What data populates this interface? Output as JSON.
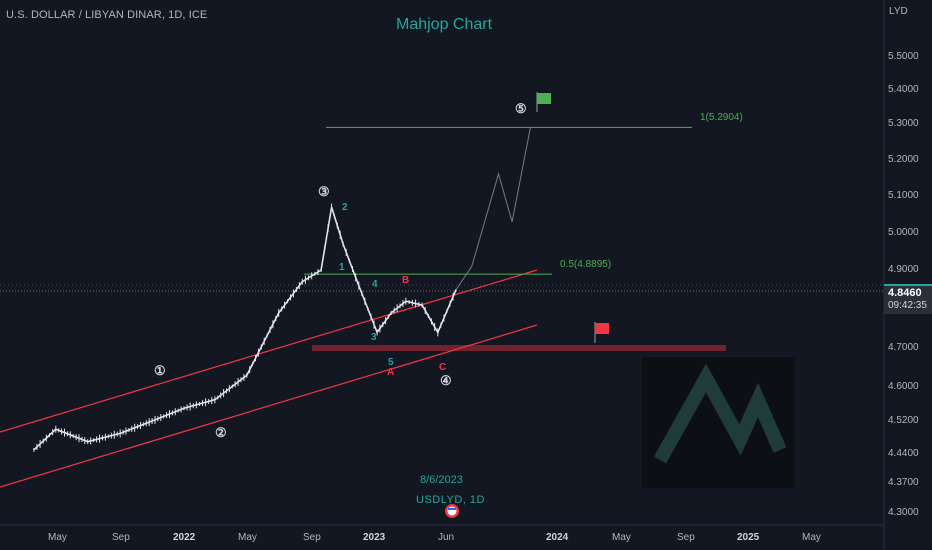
{
  "header": {
    "symbol": "U.S. DOLLAR / LIBYAN DINAR, 1D, ICE",
    "brand": "Mahjop Chart"
  },
  "watermark": {
    "date": "8/6/2023",
    "symbol": "USDLYD, 1D"
  },
  "price_tag": {
    "value": "4.8460",
    "countdown": "09:42:35"
  },
  "colors": {
    "background": "#131722",
    "channel": "#f23645",
    "fib_line": "#4caf50",
    "candle_up": "#e0e3eb",
    "support_zone": "#7b2530",
    "accent": "#26a69a"
  },
  "annotations": {
    "fib_1": "1(5.2904)",
    "fib_05": "0.5(4.8895)",
    "waves": [
      {
        "label": "①",
        "color": "#ffffff"
      },
      {
        "label": "②",
        "color": "#ffffff"
      },
      {
        "label": "③",
        "color": "#ffffff"
      },
      {
        "label": "④",
        "color": "#ffffff"
      },
      {
        "label": "⑤",
        "color": "#ffffff"
      },
      {
        "label": "1",
        "color": "#26a69a"
      },
      {
        "label": "2",
        "color": "#26a69a"
      },
      {
        "label": "3",
        "color": "#26a69a"
      },
      {
        "label": "4",
        "color": "#26a69a"
      },
      {
        "label": "5",
        "color": "#26a69a"
      },
      {
        "label": "A",
        "color": "#f23645"
      },
      {
        "label": "B",
        "color": "#f23645"
      },
      {
        "label": "C",
        "color": "#f23645"
      }
    ]
  },
  "chart_data": {
    "type": "line",
    "title": "U.S. DOLLAR / LIBYAN DINAR, 1D, ICE",
    "y_unit": "LYD",
    "y_scale": "log",
    "y_ticks": [
      "5.5000",
      "5.4000",
      "5.3000",
      "5.2000",
      "5.1000",
      "5.0000",
      "4.9000",
      "4.8460",
      "4.7000",
      "4.6000",
      "4.5200",
      "4.4400",
      "4.3700",
      "4.3000"
    ],
    "x_ticks": [
      "May",
      "Sep",
      "2022",
      "May",
      "Sep",
      "2023",
      "Jun",
      "2024",
      "May",
      "Sep",
      "2025",
      "May"
    ],
    "x": [
      "2021-03-20",
      "2021-05-01",
      "2021-07-01",
      "2021-09-01",
      "2021-11-01",
      "2022-01-01",
      "2022-03-01",
      "2022-05-01",
      "2022-07-01",
      "2022-08-15",
      "2022-09-20",
      "2022-10-10",
      "2022-11-01",
      "2022-12-01",
      "2023-01-05",
      "2023-02-01",
      "2023-03-01",
      "2023-04-01",
      "2023-05-01",
      "2023-06-05"
    ],
    "series": [
      {
        "values": [
          4.45,
          4.5,
          4.47,
          4.49,
          4.52,
          4.55,
          4.57,
          4.63,
          4.79,
          4.87,
          4.9,
          5.07,
          4.97,
          4.86,
          4.74,
          4.79,
          4.82,
          4.81,
          4.74,
          4.85
        ]
      }
    ],
    "projection": {
      "x": [
        "2023-06-05",
        "2023-07-05",
        "2023-08-25",
        "2023-09-20",
        "2023-10-25"
      ],
      "values": [
        4.85,
        4.91,
        5.16,
        5.03,
        5.29
      ]
    },
    "levels": {
      "fib_1": 5.2904,
      "fib_05": 4.8895,
      "current": 4.846,
      "support": 4.7
    }
  }
}
